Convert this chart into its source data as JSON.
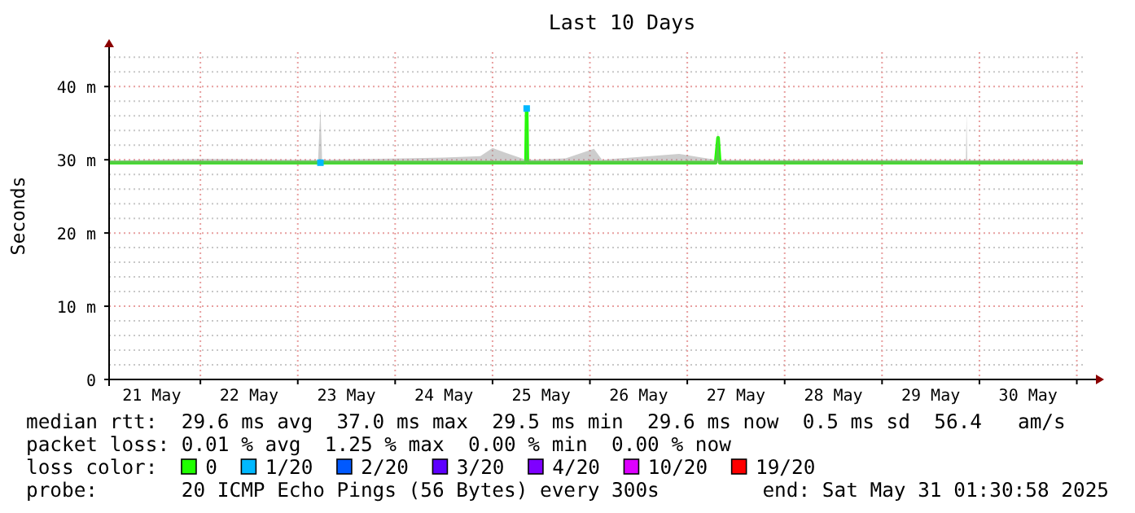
{
  "chart_data": {
    "type": "line",
    "title": "Last 10 Days",
    "ylabel": "Seconds",
    "xlim": [
      "2025-05-21T01:30",
      "2025-05-31T01:30"
    ],
    "xticks": [
      {
        "value": "2025-05-21T12:00",
        "label": "21 May"
      },
      {
        "value": "2025-05-22T00:00",
        "label": null
      },
      {
        "value": "2025-05-22T12:00",
        "label": "22 May"
      },
      {
        "value": "2025-05-23T00:00",
        "label": null
      },
      {
        "value": "2025-05-23T12:00",
        "label": "23 May"
      },
      {
        "value": "2025-05-24T00:00",
        "label": null
      },
      {
        "value": "2025-05-24T12:00",
        "label": "24 May"
      },
      {
        "value": "2025-05-25T00:00",
        "label": null
      },
      {
        "value": "2025-05-25T12:00",
        "label": "25 May"
      },
      {
        "value": "2025-05-26T00:00",
        "label": null
      },
      {
        "value": "2025-05-26T12:00",
        "label": "26 May"
      },
      {
        "value": "2025-05-27T00:00",
        "label": null
      },
      {
        "value": "2025-05-27T12:00",
        "label": "27 May"
      },
      {
        "value": "2025-05-28T00:00",
        "label": null
      },
      {
        "value": "2025-05-28T12:00",
        "label": "28 May"
      },
      {
        "value": "2025-05-29T00:00",
        "label": null
      },
      {
        "value": "2025-05-29T12:00",
        "label": "29 May"
      },
      {
        "value": "2025-05-30T00:00",
        "label": null
      },
      {
        "value": "2025-05-30T12:00",
        "label": "30 May"
      },
      {
        "value": "2025-05-31T00:00",
        "label": null
      }
    ],
    "ylim": [
      0,
      44.7
    ],
    "yticks": [
      0,
      {
        "value": 2,
        "label": null
      },
      {
        "value": 4,
        "label": null
      },
      {
        "value": 6,
        "label": null
      },
      {
        "value": 8,
        "label": null
      },
      {
        "value": 10,
        "label": "10 m"
      },
      {
        "value": 12,
        "label": null
      },
      {
        "value": 14,
        "label": null
      },
      {
        "value": 16,
        "label": null
      },
      {
        "value": 18,
        "label": null
      },
      {
        "value": 20,
        "label": "20 m"
      },
      {
        "value": 22,
        "label": null
      },
      {
        "value": 24,
        "label": null
      },
      {
        "value": 26,
        "label": null
      },
      {
        "value": 28,
        "label": null
      },
      {
        "value": 30,
        "label": "30 m"
      },
      {
        "value": 32,
        "label": null
      },
      {
        "value": 34,
        "label": null
      },
      {
        "value": 36,
        "label": null
      },
      {
        "value": 38,
        "label": null
      },
      {
        "value": 40,
        "label": "40 m"
      },
      {
        "value": 42,
        "label": null
      },
      {
        "value": 44,
        "label": null
      }
    ],
    "grid": true,
    "legend": "bottom",
    "legend_title": "loss color:",
    "series": [
      {
        "name": "0",
        "color": "#20ff00",
        "x": [
          "2025-05-21T01:30",
          "2025-05-22T00:00",
          "2025-05-23T05:00",
          "2025-05-23T05:35",
          "2025-05-23T06:00",
          "2025-05-24T12:00",
          "2025-05-24T21:00",
          "2025-05-25T00:00",
          "2025-05-25T03:00",
          "2025-05-25T08:15",
          "2025-05-25T08:25",
          "2025-05-25T08:35",
          "2025-05-25T18:00",
          "2025-05-26T01:00",
          "2025-05-26T03:00",
          "2025-05-26T22:00",
          "2025-05-27T07:00",
          "2025-05-27T07:35",
          "2025-05-27T08:00",
          "2025-05-29T20:40",
          "2025-05-29T20:50",
          "2025-05-29T21:00",
          "2025-05-31T01:30"
        ],
        "values": [
          29.6,
          29.6,
          29.6,
          29.6,
          29.6,
          29.6,
          29.6,
          29.6,
          29.6,
          29.6,
          37,
          29.6,
          29.6,
          29.6,
          29.6,
          29.6,
          29.6,
          33,
          29.6,
          29.6,
          29.6,
          29.6,
          29.6
        ],
        "lower": [
          29.4,
          29.4,
          29.4,
          29.4,
          29.4,
          29.4,
          29.4,
          29.4,
          29.4,
          29.4,
          29.6,
          29.4,
          29.4,
          29.4,
          29.4,
          29.4,
          29.4,
          29.6,
          29.4,
          29.4,
          29.6,
          29.4,
          29.4
        ],
        "upper": [
          29.9,
          30.1,
          30,
          37,
          30,
          30.3,
          30.5,
          31.6,
          31,
          30,
          37.2,
          30,
          30.2,
          31.5,
          30,
          30.8,
          30,
          34,
          30,
          30,
          36.3,
          30,
          30
        ]
      },
      {
        "name": "1/20",
        "type": "scatter",
        "color": "#00b8ff",
        "marker": "square",
        "x": [
          "2025-05-23T05:35",
          "2025-05-25T08:25"
        ],
        "values": [
          29.6,
          37
        ]
      },
      {
        "name": "2/20",
        "type": "scatter",
        "color": "#0059ff",
        "marker": "square"
      },
      {
        "name": "3/20",
        "type": "scatter",
        "color": "#5e00ff",
        "marker": "square"
      },
      {
        "name": "4/20",
        "type": "scatter",
        "color": "#7e00ff",
        "marker": "square"
      },
      {
        "name": "10/20",
        "type": "scatter",
        "color": "#dd00ff",
        "marker": "square"
      },
      {
        "name": "19/20",
        "type": "scatter",
        "color": "#ff0000",
        "marker": "square"
      }
    ],
    "annotations": [
      "median rtt:  29.6 ms avg  37.0 ms max  29.5 ms min  29.6 ms now  0.5 ms sd  56.4   am/s",
      "packet loss: 0.01 % avg  1.25 % max  0.00 % min  0.00 % now",
      "probe:       20 ICMP Echo Pings (56 Bytes) every 300s",
      "end: Sat May 31 01:30:58 2025"
    ]
  }
}
